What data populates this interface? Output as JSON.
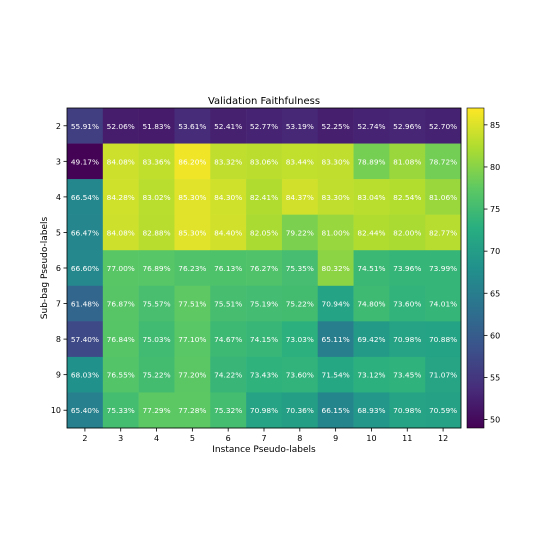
{
  "chart_data": {
    "type": "heatmap",
    "title": "Validation Faithfulness",
    "xlabel": "Instance Pseudo-labels",
    "ylabel": "Sub-bag Pseudo-labels",
    "x_categories": [
      "2",
      "3",
      "4",
      "5",
      "6",
      "7",
      "8",
      "9",
      "10",
      "11",
      "12"
    ],
    "y_categories": [
      "2",
      "3",
      "4",
      "5",
      "6",
      "7",
      "8",
      "9",
      "10"
    ],
    "values": [
      [
        55.91,
        52.06,
        51.83,
        53.61,
        52.41,
        52.77,
        53.19,
        52.25,
        52.74,
        52.96,
        52.7
      ],
      [
        49.17,
        84.08,
        83.36,
        86.2,
        83.32,
        83.06,
        83.44,
        83.3,
        78.89,
        81.08,
        78.72
      ],
      [
        66.54,
        84.28,
        83.02,
        85.3,
        84.3,
        82.41,
        84.37,
        83.3,
        83.04,
        82.54,
        81.06
      ],
      [
        66.47,
        84.08,
        82.88,
        85.3,
        84.4,
        82.05,
        79.22,
        81.0,
        82.44,
        82.0,
        82.77
      ],
      [
        66.6,
        77.0,
        76.89,
        76.23,
        76.13,
        76.27,
        75.35,
        80.32,
        74.51,
        73.96,
        73.99
      ],
      [
        61.48,
        76.87,
        75.57,
        77.51,
        75.51,
        75.19,
        75.22,
        70.94,
        74.8,
        73.6,
        74.01
      ],
      [
        57.4,
        76.84,
        75.03,
        77.1,
        74.67,
        74.15,
        73.03,
        65.11,
        69.42,
        70.98,
        70.88
      ],
      [
        68.03,
        76.55,
        75.22,
        77.2,
        74.22,
        73.43,
        73.6,
        71.54,
        73.12,
        73.45,
        71.07
      ],
      [
        65.4,
        75.33,
        77.29,
        77.28,
        75.32,
        70.98,
        70.36,
        66.15,
        68.93,
        70.98,
        70.59
      ]
    ],
    "value_suffix": "%",
    "colormap": "viridis",
    "vmin": 49,
    "vmax": 87,
    "colorbar_ticks": [
      50,
      55,
      60,
      65,
      70,
      75,
      80,
      85
    ]
  }
}
